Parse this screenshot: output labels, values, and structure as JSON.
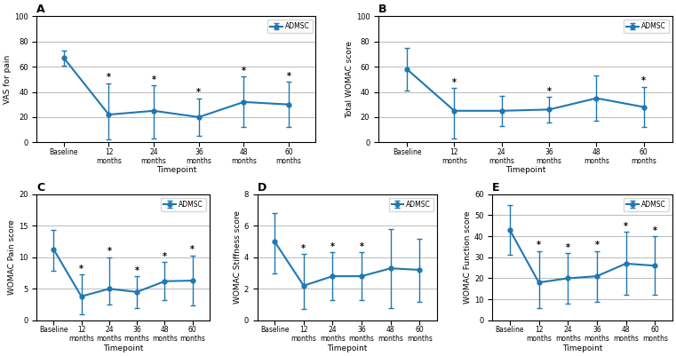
{
  "chart_data": [
    {
      "type": "line",
      "title": "A",
      "x_label": "Timepoint",
      "y_label": "VAS for pain",
      "categories": [
        "Baseline",
        "12\nmonths",
        "24\nmonths",
        "36\nmonths",
        "48\nmonths",
        "60\nmonths"
      ],
      "series": [
        {
          "name": "ADMSC",
          "values": [
            67,
            22,
            25,
            20,
            32,
            30
          ],
          "errors_upper": [
            6,
            25,
            20,
            15,
            20,
            18
          ],
          "errors_lower": [
            6,
            20,
            22,
            15,
            20,
            18
          ],
          "annotations": [
            null,
            "*",
            "*",
            "*",
            "*",
            "*"
          ]
        }
      ],
      "ylim": [
        0,
        100
      ],
      "yticks": [
        0,
        20,
        40,
        60,
        80,
        100
      ],
      "grid": true,
      "legend": "upper right"
    },
    {
      "type": "line",
      "title": "B",
      "x_label": "Timepoint",
      "y_label": "Total WOMAC score",
      "categories": [
        "Baseline",
        "12\nmonths",
        "24\nmonths",
        "36\nmonths",
        "48\nmonths",
        "60\nmonths"
      ],
      "series": [
        {
          "name": "ADMSC",
          "values": [
            58,
            25,
            25,
            26,
            35,
            28
          ],
          "errors_upper": [
            17,
            18,
            12,
            10,
            18,
            16
          ],
          "errors_lower": [
            17,
            22,
            12,
            10,
            18,
            16
          ],
          "annotations": [
            null,
            "*",
            null,
            "*",
            null,
            "*"
          ]
        }
      ],
      "ylim": [
        0,
        100
      ],
      "yticks": [
        0,
        20,
        40,
        60,
        80,
        100
      ],
      "grid": true,
      "legend": "upper right"
    },
    {
      "type": "line",
      "title": "C",
      "x_label": "Timepoint",
      "y_label": "WOMAC Pain score",
      "categories": [
        "Baseline",
        "12\nmonths",
        "24\nmonths",
        "36\nmonths",
        "48\nmonths",
        "60\nmonths"
      ],
      "series": [
        {
          "name": "ADMSC",
          "values": [
            11.3,
            3.8,
            5.0,
            4.5,
            6.2,
            6.3
          ],
          "errors_upper": [
            3.0,
            3.5,
            5.0,
            2.5,
            3.0,
            4.0
          ],
          "errors_lower": [
            3.5,
            2.8,
            2.5,
            2.5,
            3.0,
            4.0
          ],
          "annotations": [
            null,
            "*",
            "*",
            "*",
            "*",
            "*"
          ]
        }
      ],
      "ylim": [
        0,
        20
      ],
      "yticks": [
        0,
        5,
        10,
        15,
        20
      ],
      "grid": true,
      "legend": "upper right"
    },
    {
      "type": "line",
      "title": "D",
      "x_label": "Timepoint",
      "y_label": "WOMAC Stiffness score",
      "categories": [
        "Baseline",
        "12\nmonths",
        "24\nmonths",
        "36\nmonths",
        "48\nmonths",
        "60\nmonths"
      ],
      "series": [
        {
          "name": "ADMSC",
          "values": [
            5.0,
            2.2,
            2.8,
            2.8,
            3.3,
            3.2
          ],
          "errors_upper": [
            1.8,
            2.0,
            1.5,
            1.5,
            2.5,
            2.0
          ],
          "errors_lower": [
            2.0,
            1.5,
            1.5,
            1.5,
            2.5,
            2.0
          ],
          "annotations": [
            null,
            "*",
            "*",
            "*",
            null,
            null
          ]
        }
      ],
      "ylim": [
        0,
        8
      ],
      "yticks": [
        0,
        2,
        4,
        6,
        8
      ],
      "grid": true,
      "legend": "upper right"
    },
    {
      "type": "line",
      "title": "E",
      "x_label": "Timepoint",
      "y_label": "WOMAC Function score",
      "categories": [
        "Baseline",
        "12\nmonths",
        "24\nmonths",
        "36\nmonths",
        "48\nmonths",
        "60\nmonths"
      ],
      "series": [
        {
          "name": "ADMSC",
          "values": [
            43,
            18,
            20,
            21,
            27,
            26
          ],
          "errors_upper": [
            12,
            15,
            12,
            12,
            15,
            14
          ],
          "errors_lower": [
            12,
            12,
            12,
            12,
            15,
            14
          ],
          "annotations": [
            null,
            "*",
            "*",
            "*",
            "*",
            "*"
          ]
        }
      ],
      "ylim": [
        0,
        60
      ],
      "yticks": [
        0,
        10,
        20,
        30,
        40,
        50,
        60
      ],
      "grid": true,
      "legend": "upper right"
    }
  ]
}
